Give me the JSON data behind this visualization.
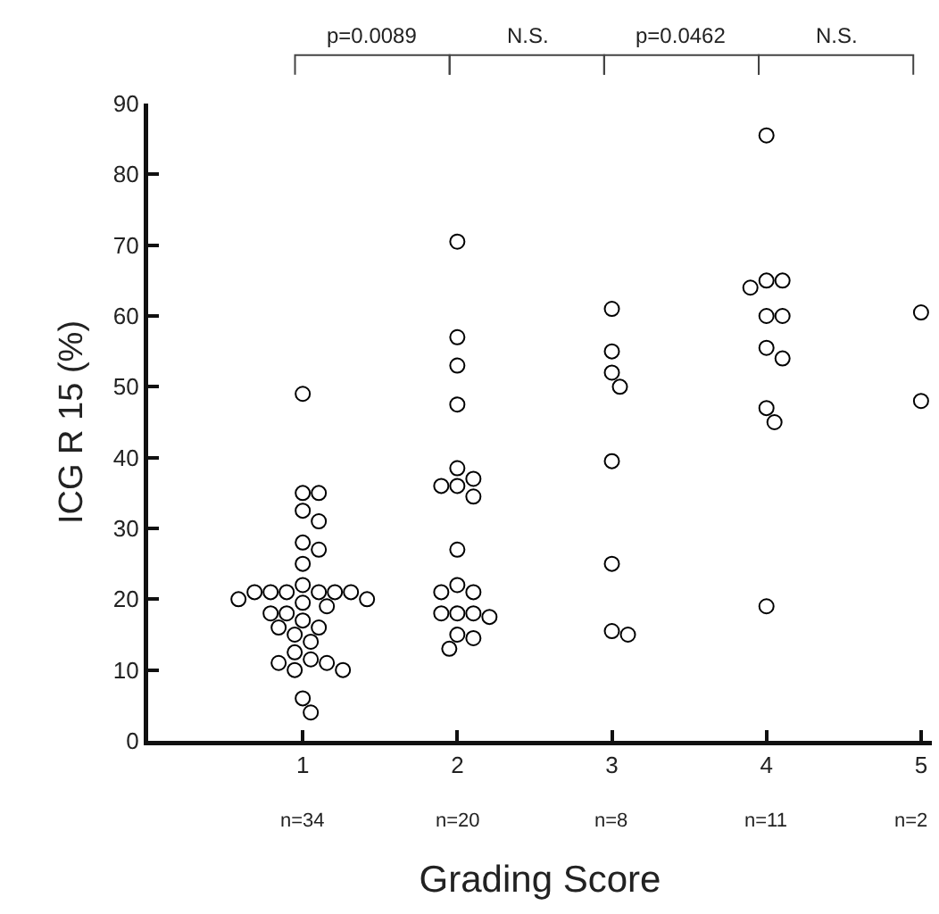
{
  "chart_data": {
    "type": "scatter",
    "xlabel": "Grading Score",
    "ylabel": "ICG R 15 (%)",
    "categories": [
      "1",
      "2",
      "3",
      "4",
      "5"
    ],
    "series": [
      {
        "color": "#000000",
        "x": [
          "1",
          "1",
          "1",
          "1",
          "1",
          "1",
          "1",
          "1",
          "1",
          "1",
          "1",
          "1",
          "1",
          "1",
          "1",
          "1",
          "1",
          "1",
          "1",
          "1",
          "1",
          "1",
          "1",
          "1",
          "1",
          "1",
          "1",
          "1",
          "1",
          "1",
          "1",
          "1",
          "1",
          "1",
          "2",
          "2",
          "2",
          "2",
          "2",
          "2",
          "2",
          "2",
          "2",
          "2",
          "2",
          "2",
          "2",
          "2",
          "2",
          "2",
          "2",
          "2",
          "2",
          "2",
          "3",
          "3",
          "3",
          "3",
          "3",
          "3",
          "3",
          "3",
          "4",
          "4",
          "4",
          "4",
          "4",
          "4",
          "4",
          "4",
          "4",
          "4",
          "4",
          "5",
          "5"
        ],
        "values": [
          49,
          35,
          35,
          32.5,
          31,
          28,
          27,
          25,
          22,
          21,
          21,
          21,
          21,
          21,
          21,
          20,
          20,
          19.5,
          19,
          18,
          18,
          17,
          16,
          16,
          15,
          14,
          12.5,
          11.5,
          11,
          11,
          10,
          10,
          6,
          4,
          70.5,
          57,
          53,
          47.5,
          38.5,
          37,
          36,
          36,
          34.5,
          27,
          22,
          21,
          21,
          18,
          18,
          18,
          17.5,
          15,
          14.5,
          13,
          61,
          55,
          52,
          50,
          39.5,
          25,
          15.5,
          15,
          85.5,
          65,
          65,
          64,
          60,
          60,
          55.5,
          54,
          47,
          45,
          19,
          60.5,
          48
        ]
      }
    ],
    "ylim": [
      0,
      90
    ],
    "yticks": [
      0,
      10,
      20,
      30,
      40,
      50,
      60,
      70,
      80,
      90
    ],
    "marker": "circle",
    "grid": false,
    "annotations": [
      "p=0.0089",
      "N.S.",
      "p=0.0462",
      "N.S.",
      "n=34",
      "n=20",
      "n=8",
      "n=11",
      "n=2"
    ]
  }
}
